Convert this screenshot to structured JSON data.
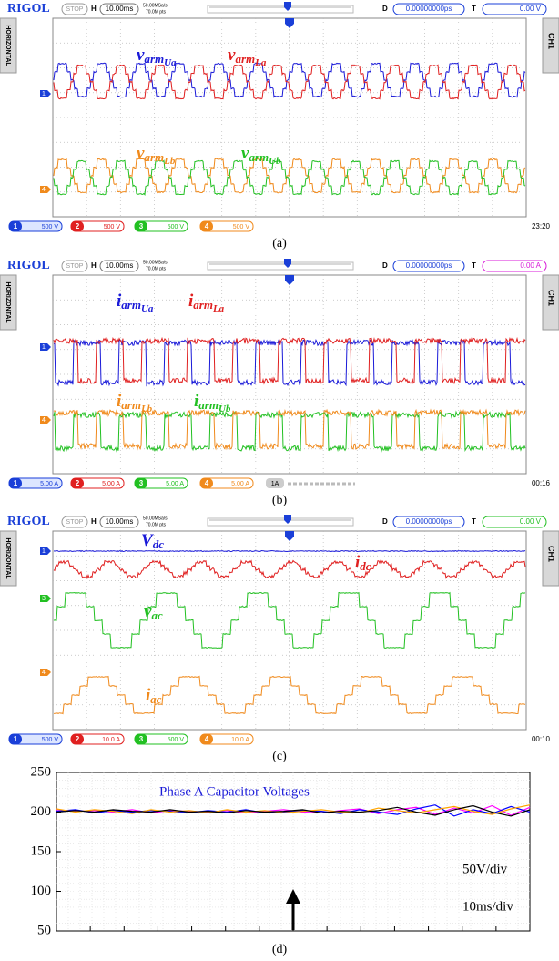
{
  "panels": [
    {
      "top": {
        "brand": "RIGOL",
        "status": "STOP",
        "h": "H",
        "timebase": "10.00ms",
        "sample_rate": "50.00MSa/s",
        "points": "70.0M pts",
        "d": "D",
        "delay": "0.00000000ps",
        "t": "T",
        "trigger_level": "0.00 V",
        "trigger_color": "#1a3fd8"
      },
      "side_left": "HORIZONTAL",
      "side_right": "CH1",
      "labels": [
        {
          "main": "v",
          "sub": "arm",
          "index": "Ua",
          "color": "#1a1ad8"
        },
        {
          "main": "v",
          "sub": "arm",
          "index": "La",
          "color": "#e02020"
        },
        {
          "main": "v",
          "sub": "arm",
          "index": "Lb",
          "color": "#f08a1c"
        },
        {
          "main": "v",
          "sub": "arm",
          "index": "Ub",
          "color": "#22c022"
        }
      ],
      "channels": [
        {
          "number": "1",
          "scale": "500 V",
          "color": "#1a3fd8"
        },
        {
          "number": "2",
          "scale": "500 V",
          "color": "#e02020"
        },
        {
          "number": "3",
          "scale": "500 V",
          "color": "#22c022"
        },
        {
          "number": "4",
          "scale": "500 V",
          "color": "#f08a1c"
        }
      ],
      "markers": [
        "1",
        "4"
      ],
      "clock": "23:20",
      "caption": "(a)"
    },
    {
      "top": {
        "brand": "RIGOL",
        "status": "STOP",
        "h": "H",
        "timebase": "10.00ms",
        "sample_rate": "50.00MSa/s",
        "points": "70.0M pts",
        "d": "D",
        "delay": "0.00000000ps",
        "t": "T",
        "trigger_level": "0.00 A",
        "trigger_color": "#d81ad8"
      },
      "side_left": "HORIZONTAL",
      "side_right": "CH1",
      "labels": [
        {
          "main": "i",
          "sub": "arm",
          "index": "Ua",
          "color": "#1a1ad8"
        },
        {
          "main": "i",
          "sub": "arm",
          "index": "La",
          "color": "#e02020"
        },
        {
          "main": "i",
          "sub": "arm",
          "index": "Lb",
          "color": "#f08a1c"
        },
        {
          "main": "i",
          "sub": "arm",
          "index": "Ub",
          "color": "#22c022"
        }
      ],
      "channels": [
        {
          "number": "1",
          "scale": "5.00 A",
          "color": "#1a3fd8"
        },
        {
          "number": "2",
          "scale": "5.00 A",
          "color": "#e02020"
        },
        {
          "number": "3",
          "scale": "5.00 A",
          "color": "#22c022"
        },
        {
          "number": "4",
          "scale": "5.00 A",
          "color": "#f08a1c"
        }
      ],
      "extra": "1A",
      "markers": [
        "1",
        "4"
      ],
      "clock": "00:16",
      "caption": "(b)"
    },
    {
      "top": {
        "brand": "RIGOL",
        "status": "STOP",
        "h": "H",
        "timebase": "10.00ms",
        "sample_rate": "50.00MSa/s",
        "points": "70.0M pts",
        "d": "D",
        "delay": "0.00000000ps",
        "t": "T",
        "trigger_level": "0.00 V",
        "trigger_color": "#22c022"
      },
      "side_left": "HORIZONTAL",
      "side_right": "CH1",
      "labels": [
        {
          "main": "V",
          "sub": "dc",
          "color": "#1a1ad8"
        },
        {
          "main": "i",
          "sub": "dc",
          "color": "#e02020"
        },
        {
          "main": "v",
          "sub": "ac",
          "color": "#22c022"
        },
        {
          "main": "i",
          "sub": "ac",
          "color": "#f08a1c"
        }
      ],
      "channels": [
        {
          "number": "1",
          "scale": "500 V",
          "color": "#1a3fd8"
        },
        {
          "number": "2",
          "scale": "10.0 A",
          "color": "#e02020"
        },
        {
          "number": "3",
          "scale": "500 V",
          "color": "#22c022"
        },
        {
          "number": "4",
          "scale": "10.0 A",
          "color": "#f08a1c"
        }
      ],
      "markers": [
        "1",
        "3",
        "4"
      ],
      "clock": "00:10",
      "caption": "(c)"
    }
  ],
  "chart_data": {
    "type": "line",
    "title": "Phase A Capacitor Voltages",
    "title_color": "#1a1ad8",
    "annotations": [
      "50V/div",
      "10ms/div"
    ],
    "caption": "(d)",
    "ylim": [
      50,
      250
    ],
    "yticks": [
      50,
      100,
      150,
      200,
      250
    ],
    "grid": true,
    "series": [
      {
        "color": "#ff00ff",
        "values": [
          203,
          201,
          202,
          200,
          203,
          199,
          202,
          201,
          200,
          202,
          199,
          201,
          203,
          200,
          199,
          202,
          204,
          198,
          203,
          206,
          197,
          205,
          199,
          208,
          196,
          206
        ]
      },
      {
        "color": "#0000ff",
        "values": [
          201,
          203,
          199,
          202,
          200,
          202,
          201,
          199,
          202,
          200,
          203,
          199,
          200,
          202,
          201,
          198,
          203,
          200,
          197,
          204,
          209,
          195,
          203,
          198,
          207,
          200
        ]
      },
      {
        "color": "#ffa500",
        "values": [
          204,
          200,
          203,
          201,
          198,
          203,
          200,
          202,
          199,
          203,
          200,
          202,
          199,
          201,
          203,
          200,
          199,
          205,
          202,
          199,
          203,
          207,
          201,
          197,
          204,
          209
        ]
      },
      {
        "color": "#000000",
        "values": [
          200,
          202,
          200,
          203,
          201,
          200,
          203,
          200,
          201,
          199,
          202,
          200,
          201,
          203,
          199,
          201,
          200,
          202,
          206,
          200,
          196,
          203,
          208,
          200,
          195,
          203
        ]
      }
    ]
  }
}
